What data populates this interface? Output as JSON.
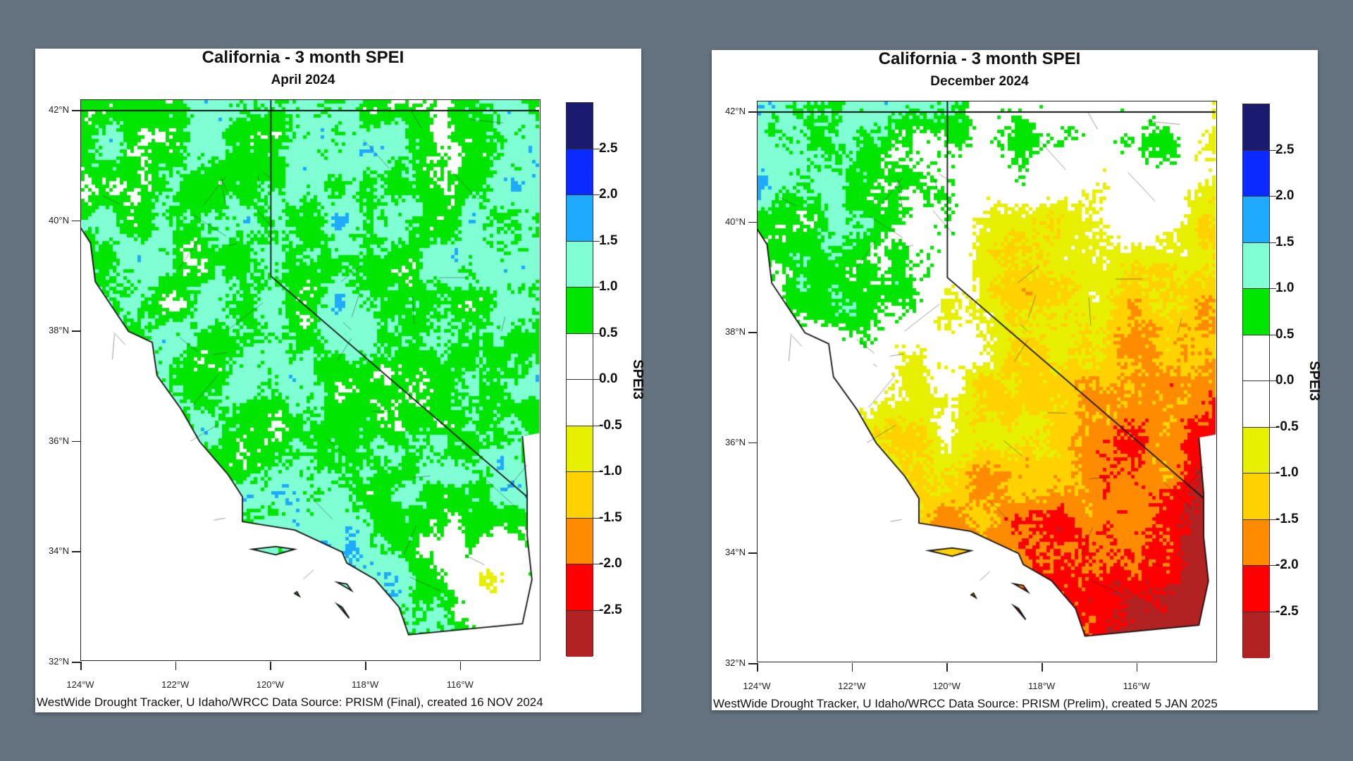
{
  "background": "#64737f",
  "panels": [
    {
      "title": "California - 3 month SPEI",
      "subtitle": "April 2024",
      "footer": "WestWide Drought Tracker, U Idaho/WRCC Data Source: PRISM (Final), created 16 NOV 2024"
    },
    {
      "title": "California - 3 month SPEI",
      "subtitle": "December 2024",
      "footer": "WestWide Drought Tracker, U Idaho/WRCC Data Source: PRISM (Prelim), created  5 JAN 2025"
    }
  ],
  "axes": {
    "lat_labels": [
      "42°N",
      "40°N",
      "38°N",
      "36°N",
      "34°N",
      "32°N"
    ],
    "lon_labels": [
      "124°W",
      "122°W",
      "120°W",
      "118°W",
      "116°W"
    ]
  },
  "colorbar": {
    "label": "SPEI3",
    "tick_labels": [
      "2.5",
      "2.0",
      "1.5",
      "1.0",
      "0.5",
      "0.0",
      "-0.5",
      "-1.0",
      "-1.5",
      "-2.0",
      "-2.5"
    ],
    "colors": [
      "#1a1a6e",
      "#0a2aff",
      "#1eaaff",
      "#80ffd4",
      "#00e600",
      "#ffffff",
      "#ffffff",
      "#e6f000",
      "#ffd200",
      "#ff8c00",
      "#ff0000",
      "#b22222"
    ]
  }
}
